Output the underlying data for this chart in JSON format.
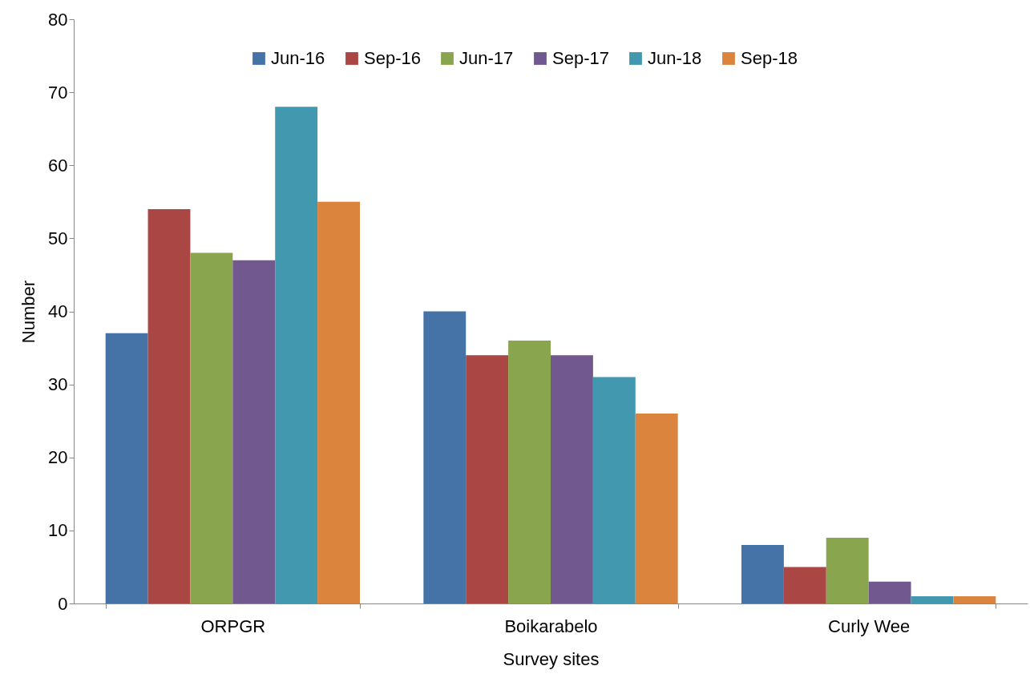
{
  "chart_data": {
    "type": "bar",
    "xlabel": "Survey sites",
    "ylabel": "Number",
    "categories": [
      "ORPGR",
      "Boikarabelo",
      "Curly Wee"
    ],
    "series": [
      {
        "name": "Jun-16",
        "color": "#4572a7",
        "values": [
          37,
          40,
          8
        ]
      },
      {
        "name": "Sep-16",
        "color": "#aa4643",
        "values": [
          54,
          34,
          5
        ]
      },
      {
        "name": "Jun-17",
        "color": "#89a54e",
        "values": [
          48,
          36,
          9
        ]
      },
      {
        "name": "Sep-17",
        "color": "#71588f",
        "values": [
          47,
          34,
          3
        ]
      },
      {
        "name": "Jun-18",
        "color": "#4198af",
        "values": [
          68,
          31,
          1
        ]
      },
      {
        "name": "Sep-18",
        "color": "#db843d",
        "values": [
          55,
          26,
          1
        ]
      }
    ],
    "ylim": [
      0,
      80
    ],
    "yticks": [
      0,
      10,
      20,
      30,
      40,
      50,
      60,
      70,
      80
    ],
    "grid": false,
    "legend": "top"
  }
}
